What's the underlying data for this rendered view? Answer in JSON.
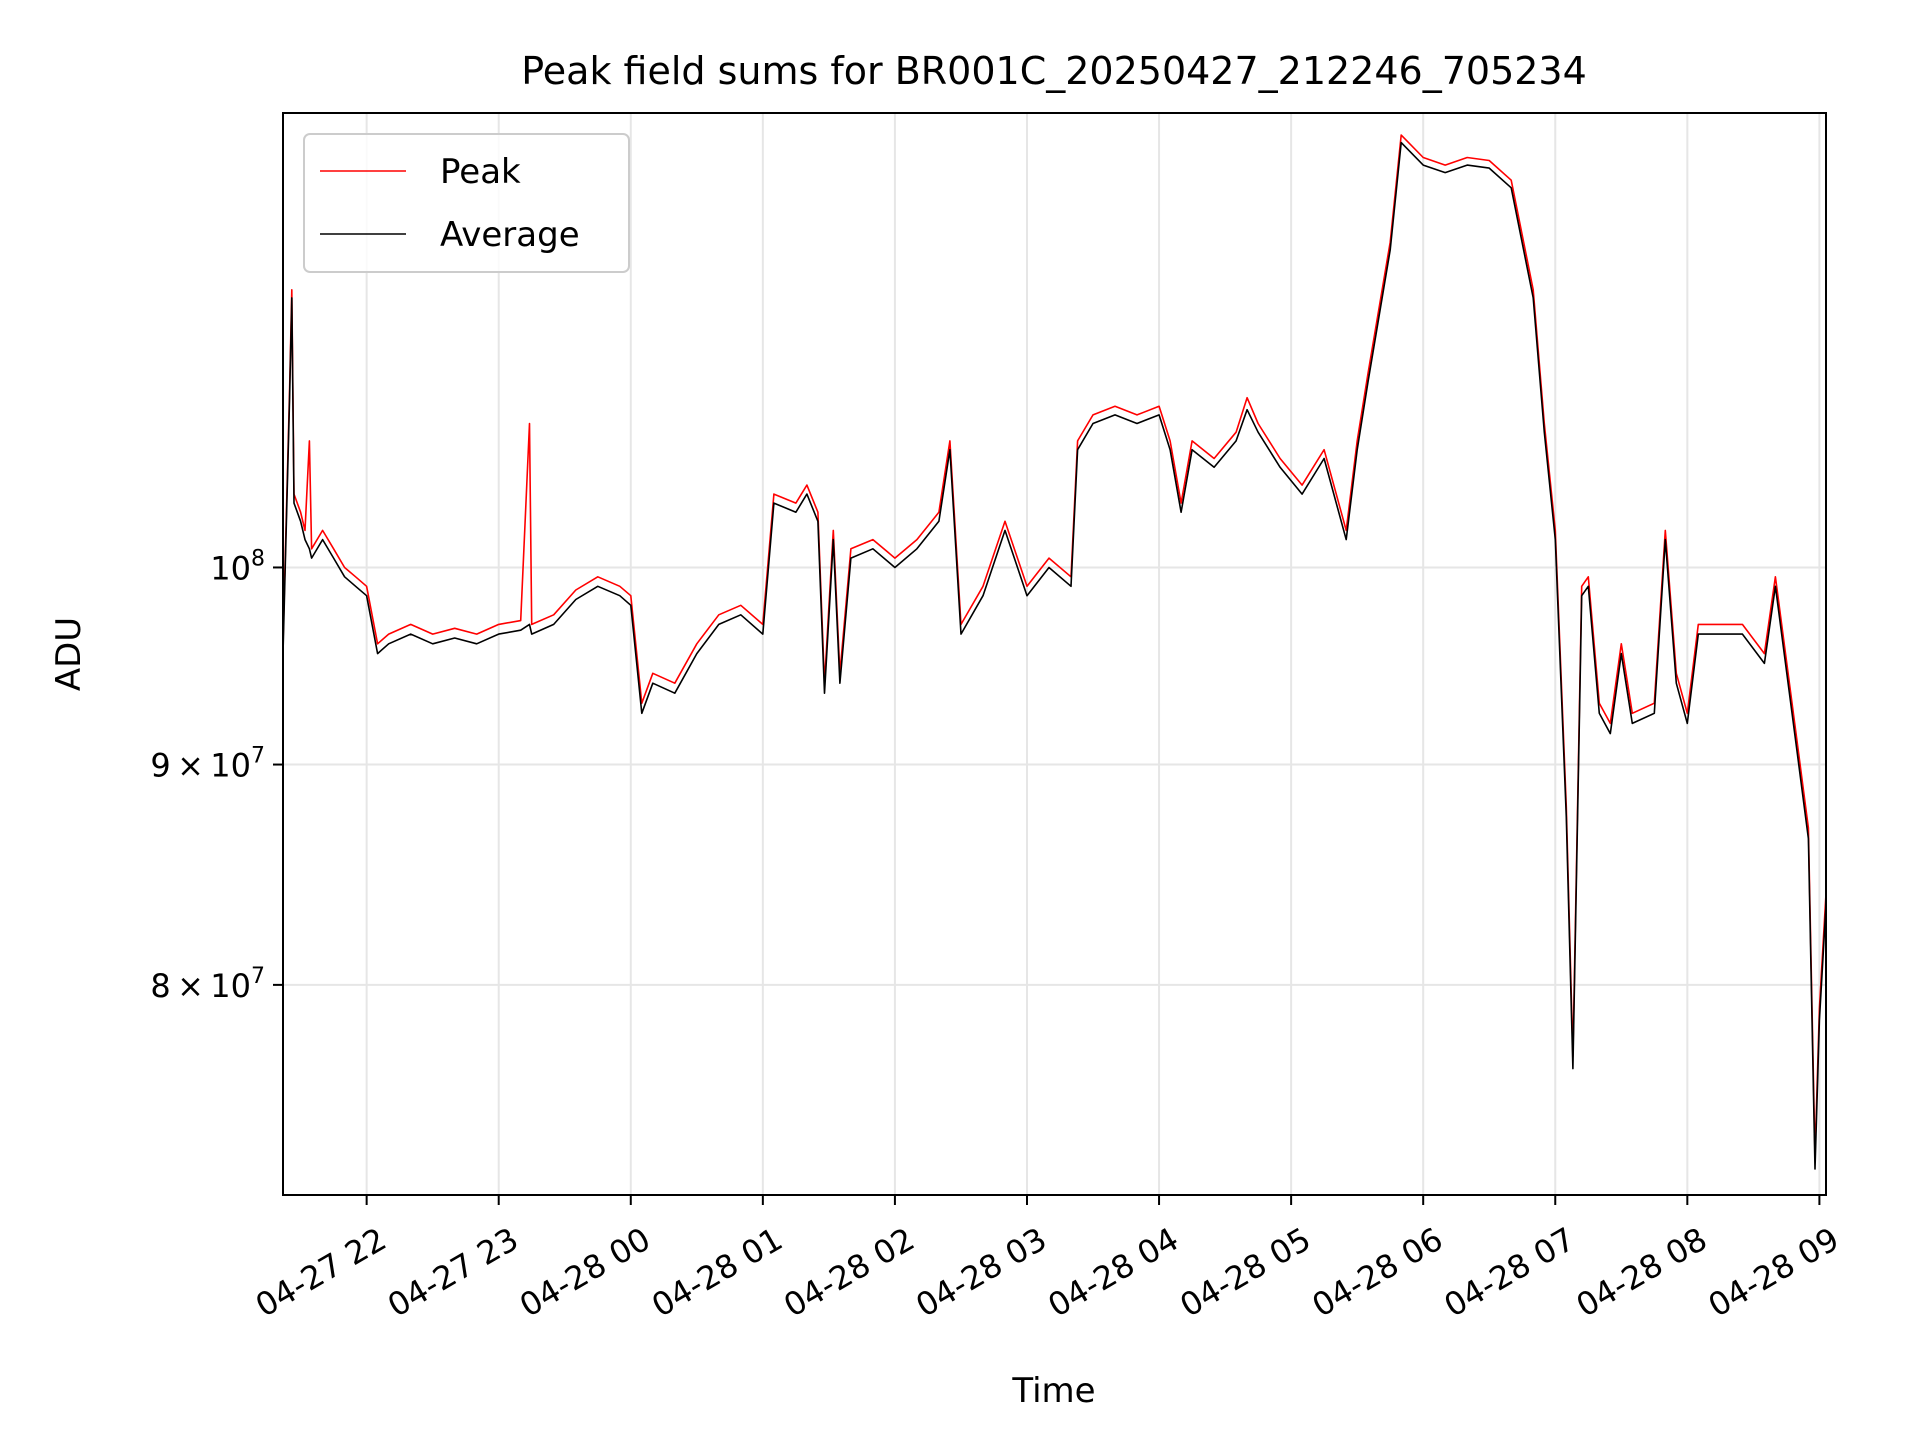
{
  "chart_data": {
    "type": "line",
    "title": "Peak field sums for BR001C_20250427_212246_705234",
    "xlabel": "Time",
    "ylabel": "ADU",
    "y_scale": "log",
    "xlim": [
      "2025-04-27 21:22",
      "2025-04-28 09:03"
    ],
    "ylim": [
      71500000,
      127500000
    ],
    "grid": true,
    "legend_position": "upper-left",
    "x_ticks": [
      {
        "t": "2025-04-27 22:00",
        "label": "04-27 22"
      },
      {
        "t": "2025-04-27 23:00",
        "label": "04-27 23"
      },
      {
        "t": "2025-04-28 00:00",
        "label": "04-28 00"
      },
      {
        "t": "2025-04-28 01:00",
        "label": "04-28 01"
      },
      {
        "t": "2025-04-28 02:00",
        "label": "04-28 02"
      },
      {
        "t": "2025-04-28 03:00",
        "label": "04-28 03"
      },
      {
        "t": "2025-04-28 04:00",
        "label": "04-28 04"
      },
      {
        "t": "2025-04-28 05:00",
        "label": "04-28 05"
      },
      {
        "t": "2025-04-28 06:00",
        "label": "04-28 06"
      },
      {
        "t": "2025-04-28 07:00",
        "label": "04-28 07"
      },
      {
        "t": "2025-04-28 08:00",
        "label": "04-28 08"
      },
      {
        "t": "2025-04-28 09:00",
        "label": "04-28 09"
      }
    ],
    "y_ticks": [
      {
        "value": 80000000,
        "mantissa": "8",
        "exponent": "7",
        "label": "8 × 10^7"
      },
      {
        "value": 90000000,
        "mantissa": "9",
        "exponent": "7",
        "label": "9 × 10^7"
      },
      {
        "value": 100000000,
        "mantissa": "",
        "exponent": "8",
        "label": "10^8"
      }
    ],
    "series": [
      {
        "name": "Peak",
        "color": "#ff0000",
        "points": [
          [
            "2025-04-27 21:22",
            96000000
          ],
          [
            "2025-04-27 21:25",
            110000000
          ],
          [
            "2025-04-27 21:26",
            116000000
          ],
          [
            "2025-04-27 21:27",
            104000000
          ],
          [
            "2025-04-27 21:30",
            103000000
          ],
          [
            "2025-04-27 21:32",
            102000000
          ],
          [
            "2025-04-27 21:34",
            107000000
          ],
          [
            "2025-04-27 21:35",
            101000000
          ],
          [
            "2025-04-27 21:40",
            102000000
          ],
          [
            "2025-04-27 21:45",
            101000000
          ],
          [
            "2025-04-27 21:50",
            100000000
          ],
          [
            "2025-04-27 21:55",
            99500000
          ],
          [
            "2025-04-27 22:00",
            99000000
          ],
          [
            "2025-04-27 22:05",
            96000000
          ],
          [
            "2025-04-27 22:10",
            96500000
          ],
          [
            "2025-04-27 22:20",
            97000000
          ],
          [
            "2025-04-27 22:30",
            96500000
          ],
          [
            "2025-04-27 22:40",
            96800000
          ],
          [
            "2025-04-27 22:50",
            96500000
          ],
          [
            "2025-04-27 23:00",
            97000000
          ],
          [
            "2025-04-27 23:10",
            97200000
          ],
          [
            "2025-04-27 23:14",
            108000000
          ],
          [
            "2025-04-27 23:15",
            97000000
          ],
          [
            "2025-04-27 23:25",
            97500000
          ],
          [
            "2025-04-27 23:35",
            98800000
          ],
          [
            "2025-04-27 23:45",
            99500000
          ],
          [
            "2025-04-27 23:55",
            99000000
          ],
          [
            "2025-04-28 00:00",
            98500000
          ],
          [
            "2025-04-28 00:05",
            93000000
          ],
          [
            "2025-04-28 00:10",
            94500000
          ],
          [
            "2025-04-28 00:20",
            94000000
          ],
          [
            "2025-04-28 00:30",
            96000000
          ],
          [
            "2025-04-28 00:40",
            97500000
          ],
          [
            "2025-04-28 00:50",
            98000000
          ],
          [
            "2025-04-28 01:00",
            97000000
          ],
          [
            "2025-04-28 01:05",
            104000000
          ],
          [
            "2025-04-28 01:15",
            103500000
          ],
          [
            "2025-04-28 01:20",
            104500000
          ],
          [
            "2025-04-28 01:25",
            103000000
          ],
          [
            "2025-04-28 01:28",
            94000000
          ],
          [
            "2025-04-28 01:32",
            102000000
          ],
          [
            "2025-04-28 01:35",
            94500000
          ],
          [
            "2025-04-28 01:40",
            101000000
          ],
          [
            "2025-04-28 01:50",
            101500000
          ],
          [
            "2025-04-28 02:00",
            100500000
          ],
          [
            "2025-04-28 02:10",
            101500000
          ],
          [
            "2025-04-28 02:20",
            103000000
          ],
          [
            "2025-04-28 02:25",
            107000000
          ],
          [
            "2025-04-28 02:30",
            97000000
          ],
          [
            "2025-04-28 02:40",
            99000000
          ],
          [
            "2025-04-28 02:50",
            102500000
          ],
          [
            "2025-04-28 03:00",
            99000000
          ],
          [
            "2025-04-28 03:10",
            100500000
          ],
          [
            "2025-04-28 03:20",
            99500000
          ],
          [
            "2025-04-28 03:23",
            107000000
          ],
          [
            "2025-04-28 03:30",
            108500000
          ],
          [
            "2025-04-28 03:40",
            109000000
          ],
          [
            "2025-04-28 03:50",
            108500000
          ],
          [
            "2025-04-28 04:00",
            109000000
          ],
          [
            "2025-04-28 04:05",
            107000000
          ],
          [
            "2025-04-28 04:10",
            103500000
          ],
          [
            "2025-04-28 04:15",
            107000000
          ],
          [
            "2025-04-28 04:25",
            106000000
          ],
          [
            "2025-04-28 04:35",
            107500000
          ],
          [
            "2025-04-28 04:40",
            109500000
          ],
          [
            "2025-04-28 04:45",
            108000000
          ],
          [
            "2025-04-28 04:55",
            106000000
          ],
          [
            "2025-04-28 05:05",
            104500000
          ],
          [
            "2025-04-28 05:15",
            106500000
          ],
          [
            "2025-04-28 05:25",
            102000000
          ],
          [
            "2025-04-28 05:30",
            107000000
          ],
          [
            "2025-04-28 05:35",
            111000000
          ],
          [
            "2025-04-28 05:45",
            119000000
          ],
          [
            "2025-04-28 05:50",
            126000000
          ],
          [
            "2025-04-28 06:00",
            124500000
          ],
          [
            "2025-04-28 06:10",
            124000000
          ],
          [
            "2025-04-28 06:20",
            124500000
          ],
          [
            "2025-04-28 06:30",
            124300000
          ],
          [
            "2025-04-28 06:40",
            123000000
          ],
          [
            "2025-04-28 06:50",
            116000000
          ],
          [
            "2025-04-28 06:55",
            108000000
          ],
          [
            "2025-04-28 07:00",
            102000000
          ],
          [
            "2025-04-28 07:05",
            88000000
          ],
          [
            "2025-04-28 07:08",
            77000000
          ],
          [
            "2025-04-28 07:12",
            99000000
          ],
          [
            "2025-04-28 07:15",
            99500000
          ],
          [
            "2025-04-28 07:20",
            93000000
          ],
          [
            "2025-04-28 07:25",
            92000000
          ],
          [
            "2025-04-28 07:30",
            96000000
          ],
          [
            "2025-04-28 07:35",
            92500000
          ],
          [
            "2025-04-28 07:45",
            93000000
          ],
          [
            "2025-04-28 07:50",
            102000000
          ],
          [
            "2025-04-28 07:55",
            94500000
          ],
          [
            "2025-04-28 08:00",
            92500000
          ],
          [
            "2025-04-28 08:05",
            97000000
          ],
          [
            "2025-04-28 08:15",
            97000000
          ],
          [
            "2025-04-28 08:25",
            97000000
          ],
          [
            "2025-04-28 08:35",
            95500000
          ],
          [
            "2025-04-28 08:40",
            99500000
          ],
          [
            "2025-04-28 08:50",
            91000000
          ],
          [
            "2025-04-28 08:55",
            87000000
          ],
          [
            "2025-04-28 08:58",
            73000000
          ],
          [
            "2025-04-28 09:00",
            79000000
          ],
          [
            "2025-04-28 09:03",
            84000000
          ]
        ]
      },
      {
        "name": "Average",
        "color": "#000000",
        "points": [
          [
            "2025-04-27 21:22",
            95500000
          ],
          [
            "2025-04-27 21:25",
            109500000
          ],
          [
            "2025-04-27 21:26",
            115500000
          ],
          [
            "2025-04-27 21:27",
            103500000
          ],
          [
            "2025-04-27 21:30",
            102500000
          ],
          [
            "2025-04-27 21:32",
            101500000
          ],
          [
            "2025-04-27 21:34",
            101000000
          ],
          [
            "2025-04-27 21:35",
            100500000
          ],
          [
            "2025-04-27 21:40",
            101500000
          ],
          [
            "2025-04-27 21:45",
            100500000
          ],
          [
            "2025-04-27 21:50",
            99500000
          ],
          [
            "2025-04-27 21:55",
            99000000
          ],
          [
            "2025-04-27 22:00",
            98500000
          ],
          [
            "2025-04-27 22:05",
            95500000
          ],
          [
            "2025-04-27 22:10",
            96000000
          ],
          [
            "2025-04-27 22:20",
            96500000
          ],
          [
            "2025-04-27 22:30",
            96000000
          ],
          [
            "2025-04-27 22:40",
            96300000
          ],
          [
            "2025-04-27 22:50",
            96000000
          ],
          [
            "2025-04-27 23:00",
            96500000
          ],
          [
            "2025-04-27 23:10",
            96700000
          ],
          [
            "2025-04-27 23:14",
            97000000
          ],
          [
            "2025-04-27 23:15",
            96500000
          ],
          [
            "2025-04-27 23:25",
            97000000
          ],
          [
            "2025-04-27 23:35",
            98300000
          ],
          [
            "2025-04-27 23:45",
            99000000
          ],
          [
            "2025-04-27 23:55",
            98500000
          ],
          [
            "2025-04-28 00:00",
            98000000
          ],
          [
            "2025-04-28 00:05",
            92500000
          ],
          [
            "2025-04-28 00:10",
            94000000
          ],
          [
            "2025-04-28 00:20",
            93500000
          ],
          [
            "2025-04-28 00:30",
            95500000
          ],
          [
            "2025-04-28 00:40",
            97000000
          ],
          [
            "2025-04-28 00:50",
            97500000
          ],
          [
            "2025-04-28 01:00",
            96500000
          ],
          [
            "2025-04-28 01:05",
            103500000
          ],
          [
            "2025-04-28 01:15",
            103000000
          ],
          [
            "2025-04-28 01:20",
            104000000
          ],
          [
            "2025-04-28 01:25",
            102500000
          ],
          [
            "2025-04-28 01:28",
            93500000
          ],
          [
            "2025-04-28 01:32",
            101500000
          ],
          [
            "2025-04-28 01:35",
            94000000
          ],
          [
            "2025-04-28 01:40",
            100500000
          ],
          [
            "2025-04-28 01:50",
            101000000
          ],
          [
            "2025-04-28 02:00",
            100000000
          ],
          [
            "2025-04-28 02:10",
            101000000
          ],
          [
            "2025-04-28 02:20",
            102500000
          ],
          [
            "2025-04-28 02:25",
            106500000
          ],
          [
            "2025-04-28 02:30",
            96500000
          ],
          [
            "2025-04-28 02:40",
            98500000
          ],
          [
            "2025-04-28 02:50",
            102000000
          ],
          [
            "2025-04-28 03:00",
            98500000
          ],
          [
            "2025-04-28 03:10",
            100000000
          ],
          [
            "2025-04-28 03:20",
            99000000
          ],
          [
            "2025-04-28 03:23",
            106500000
          ],
          [
            "2025-04-28 03:30",
            108000000
          ],
          [
            "2025-04-28 03:40",
            108500000
          ],
          [
            "2025-04-28 03:50",
            108000000
          ],
          [
            "2025-04-28 04:00",
            108500000
          ],
          [
            "2025-04-28 04:05",
            106500000
          ],
          [
            "2025-04-28 04:10",
            103000000
          ],
          [
            "2025-04-28 04:15",
            106500000
          ],
          [
            "2025-04-28 04:25",
            105500000
          ],
          [
            "2025-04-28 04:35",
            107000000
          ],
          [
            "2025-04-28 04:40",
            108800000
          ],
          [
            "2025-04-28 04:45",
            107500000
          ],
          [
            "2025-04-28 04:55",
            105500000
          ],
          [
            "2025-04-28 05:05",
            104000000
          ],
          [
            "2025-04-28 05:15",
            106000000
          ],
          [
            "2025-04-28 05:25",
            101500000
          ],
          [
            "2025-04-28 05:30",
            106500000
          ],
          [
            "2025-04-28 05:35",
            110500000
          ],
          [
            "2025-04-28 05:45",
            118500000
          ],
          [
            "2025-04-28 05:50",
            125500000
          ],
          [
            "2025-04-28 06:00",
            124000000
          ],
          [
            "2025-04-28 06:10",
            123500000
          ],
          [
            "2025-04-28 06:20",
            124000000
          ],
          [
            "2025-04-28 06:30",
            123800000
          ],
          [
            "2025-04-28 06:40",
            122500000
          ],
          [
            "2025-04-28 06:50",
            115500000
          ],
          [
            "2025-04-28 06:55",
            107500000
          ],
          [
            "2025-04-28 07:00",
            101500000
          ],
          [
            "2025-04-28 07:05",
            87500000
          ],
          [
            "2025-04-28 07:08",
            76500000
          ],
          [
            "2025-04-28 07:12",
            98500000
          ],
          [
            "2025-04-28 07:15",
            99000000
          ],
          [
            "2025-04-28 07:20",
            92500000
          ],
          [
            "2025-04-28 07:25",
            91500000
          ],
          [
            "2025-04-28 07:30",
            95500000
          ],
          [
            "2025-04-28 07:35",
            92000000
          ],
          [
            "2025-04-28 07:45",
            92500000
          ],
          [
            "2025-04-28 07:50",
            101500000
          ],
          [
            "2025-04-28 07:55",
            94000000
          ],
          [
            "2025-04-28 08:00",
            92000000
          ],
          [
            "2025-04-28 08:05",
            96500000
          ],
          [
            "2025-04-28 08:15",
            96500000
          ],
          [
            "2025-04-28 08:25",
            96500000
          ],
          [
            "2025-04-28 08:35",
            95000000
          ],
          [
            "2025-04-28 08:40",
            99000000
          ],
          [
            "2025-04-28 08:50",
            90500000
          ],
          [
            "2025-04-28 08:55",
            86500000
          ],
          [
            "2025-04-28 08:58",
            72500000
          ],
          [
            "2025-04-28 09:00",
            78500000
          ],
          [
            "2025-04-28 09:03",
            83500000
          ]
        ]
      }
    ]
  }
}
